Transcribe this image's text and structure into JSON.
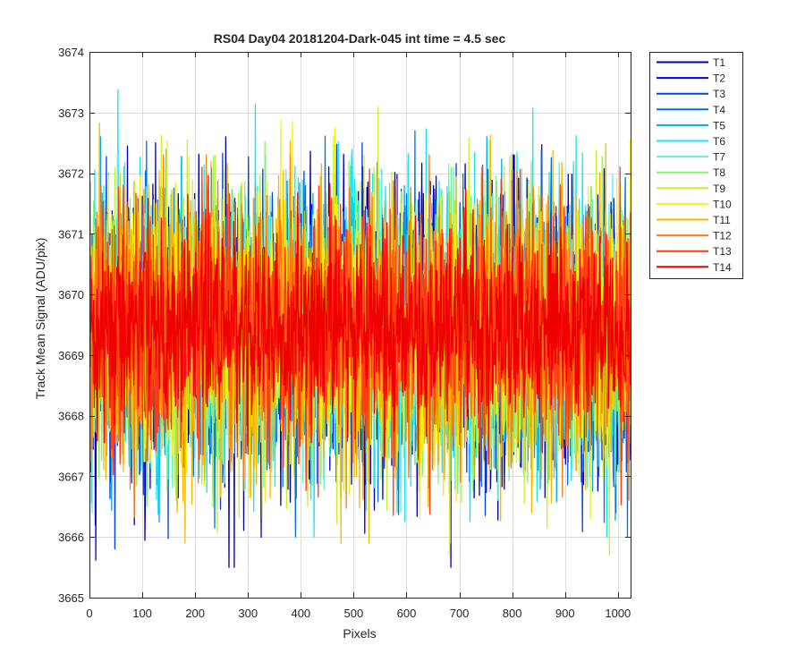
{
  "chart_data": {
    "type": "line",
    "title": "RS04 Day04 20181204-Dark-045 int time = 4.5 sec",
    "xlabel": "Pixels",
    "ylabel": "Track Mean Signal (ADU/pix)",
    "xlim": [
      0,
      1024
    ],
    "ylim": [
      3665,
      3674
    ],
    "xticks": [
      0,
      100,
      200,
      300,
      400,
      500,
      600,
      700,
      800,
      900,
      1000
    ],
    "yticks": [
      3665,
      3666,
      3667,
      3668,
      3669,
      3670,
      3671,
      3672,
      3673,
      3674
    ],
    "grid": true,
    "legend_position": "outside-top-right",
    "x": {
      "start": 1,
      "end": 1024,
      "step": 1
    },
    "series": [
      {
        "name": "T1",
        "color": "#0000aa",
        "mean": 3669.35,
        "min": 3665.5,
        "max": 3672.6
      },
      {
        "name": "T2",
        "color": "#0000dd",
        "mean": 3669.35,
        "min": 3665.6,
        "max": 3672.5
      },
      {
        "name": "T3",
        "color": "#0a3ce8",
        "mean": 3669.4,
        "min": 3665.8,
        "max": 3672.5
      },
      {
        "name": "T4",
        "color": "#0073e6",
        "mean": 3669.4,
        "min": 3666.0,
        "max": 3672.7
      },
      {
        "name": "T5",
        "color": "#00aaf0",
        "mean": 3669.4,
        "min": 3666.2,
        "max": 3672.6
      },
      {
        "name": "T6",
        "color": "#19e6f0",
        "mean": 3669.4,
        "min": 3666.0,
        "max": 3673.7
      },
      {
        "name": "T7",
        "color": "#60f0d0",
        "mean": 3669.4,
        "min": 3666.4,
        "max": 3672.8
      },
      {
        "name": "T8",
        "color": "#8cf070",
        "mean": 3669.45,
        "min": 3666.5,
        "max": 3673.4
      },
      {
        "name": "T9",
        "color": "#c8f030",
        "mean": 3669.45,
        "min": 3665.7,
        "max": 3673.1
      },
      {
        "name": "T10",
        "color": "#f5f010",
        "mean": 3669.45,
        "min": 3666.3,
        "max": 3673.2
      },
      {
        "name": "T11",
        "color": "#f5b800",
        "mean": 3669.45,
        "min": 3665.9,
        "max": 3673.2
      },
      {
        "name": "T12",
        "color": "#ff7a10",
        "mean": 3669.5,
        "min": 3666.1,
        "max": 3672.3
      },
      {
        "name": "T13",
        "color": "#ff3a10",
        "mean": 3669.5,
        "min": 3666.0,
        "max": 3672.1
      },
      {
        "name": "T14",
        "color": "#ee0000",
        "mean": 3669.5,
        "min": 3667.2,
        "max": 3672.0
      }
    ]
  }
}
